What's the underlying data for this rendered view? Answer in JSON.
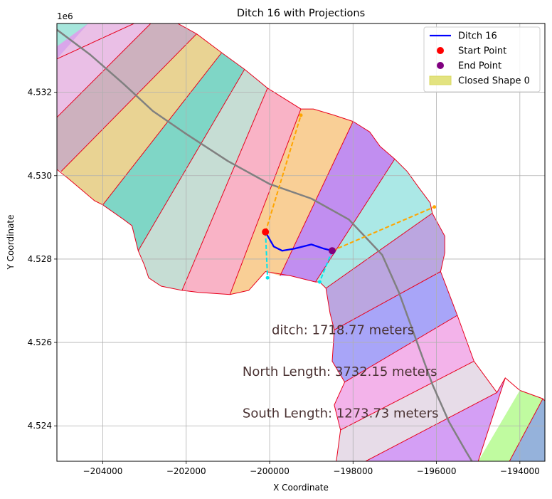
{
  "chart_data": {
    "type": "line",
    "title": "Ditch 16 with Projections",
    "xlabel": "X Coordinate",
    "ylabel": "Y Coordinate",
    "y_offset_label": "1e6",
    "xlim": [
      -205100,
      -193400
    ],
    "ylim": [
      4523150,
      4533650
    ],
    "x_ticks": [
      -204000,
      -202000,
      -200000,
      -198000,
      -196000,
      -194000
    ],
    "x_tick_labels": [
      "−204000",
      "−202000",
      "−200000",
      "−198000",
      "−196000",
      "−194000"
    ],
    "y_ticks": [
      4524000,
      4526000,
      4528000,
      4530000,
      4532000
    ],
    "y_tick_labels": [
      "4.524",
      "4.526",
      "4.528",
      "4.530",
      "4.532"
    ],
    "grid": true,
    "legend_position": "top-right",
    "legend": [
      {
        "label": "Ditch 16",
        "kind": "line",
        "color": "#0000ff"
      },
      {
        "label": "Start Point",
        "kind": "marker",
        "color": "#ff0000"
      },
      {
        "label": "End Point",
        "kind": "marker",
        "color": "#800080"
      },
      {
        "label": "Closed Shape 0",
        "kind": "patch",
        "color": "#e3e380"
      }
    ],
    "strips": [
      {
        "color": "#d9a6ea",
        "points": [
          [
            -205100,
            4532825
          ],
          [
            -205100,
            4533650
          ],
          [
            -203250,
            4533650
          ],
          [
            -205100,
            4532800
          ]
        ]
      },
      {
        "color": "#a6e6dc",
        "points": [
          [
            -205100,
            4533100
          ],
          [
            -205100,
            4533650
          ],
          [
            -204350,
            4533650
          ]
        ]
      },
      {
        "color": "#eabfe6",
        "points": [
          [
            -205100,
            4531400
          ],
          [
            -205100,
            4532800
          ],
          [
            -204350,
            4533650
          ],
          [
            -202850,
            4533650
          ],
          [
            -205100,
            4531400
          ]
        ]
      },
      {
        "color": "#cdb1be",
        "points": [
          [
            -205100,
            4530150
          ],
          [
            -205100,
            4531400
          ],
          [
            -202850,
            4533650
          ],
          [
            -202200,
            4533650
          ],
          [
            -201750,
            4533400
          ],
          [
            -205000,
            4530100
          ]
        ]
      },
      {
        "color": "#e9d393",
        "points": [
          [
            -205000,
            4530100
          ],
          [
            -201750,
            4533400
          ],
          [
            -201150,
            4532950
          ],
          [
            -204000,
            4529300
          ],
          [
            -204200,
            4529400
          ],
          [
            -204850,
            4529950
          ]
        ]
      },
      {
        "color": "#7fd6c6",
        "points": [
          [
            -204000,
            4529300
          ],
          [
            -201150,
            4532950
          ],
          [
            -200600,
            4532550
          ],
          [
            -203150,
            4528200
          ],
          [
            -203300,
            4528800
          ],
          [
            -203500,
            4528950
          ]
        ]
      },
      {
        "color": "#c6ddd4",
        "points": [
          [
            -203150,
            4528200
          ],
          [
            -200600,
            4532550
          ],
          [
            -200050,
            4532100
          ],
          [
            -202100,
            4527250
          ],
          [
            -202600,
            4527350
          ],
          [
            -202900,
            4527550
          ],
          [
            -203000,
            4527850
          ]
        ]
      },
      {
        "color": "#f9b3c6",
        "points": [
          [
            -202100,
            4527250
          ],
          [
            -200050,
            4532100
          ],
          [
            -199250,
            4531600
          ],
          [
            -200950,
            4527150
          ],
          [
            -201700,
            4527200
          ]
        ]
      },
      {
        "color": "#f9cf96",
        "points": [
          [
            -200950,
            4527150
          ],
          [
            -199250,
            4531600
          ],
          [
            -198950,
            4531600
          ],
          [
            -198450,
            4531450
          ],
          [
            -198000,
            4531300
          ],
          [
            -199750,
            4527600
          ],
          [
            -200100,
            4527700
          ],
          [
            -200500,
            4527250
          ]
        ]
      },
      {
        "color": "#c18ef0",
        "points": [
          [
            -199750,
            4527600
          ],
          [
            -198000,
            4531300
          ],
          [
            -197600,
            4531050
          ],
          [
            -197350,
            4530700
          ],
          [
            -197000,
            4530400
          ],
          [
            -198900,
            4527450
          ],
          [
            -199500,
            4527600
          ]
        ]
      },
      {
        "color": "#abe8e6",
        "points": [
          [
            -198900,
            4527450
          ],
          [
            -197000,
            4530400
          ],
          [
            -196700,
            4530100
          ],
          [
            -196450,
            4529750
          ],
          [
            -196150,
            4529350
          ],
          [
            -196100,
            4529100
          ],
          [
            -198650,
            4527300
          ],
          [
            -198800,
            4527450
          ]
        ]
      },
      {
        "color": "#bba6e0",
        "points": [
          [
            -198650,
            4527300
          ],
          [
            -196100,
            4529100
          ],
          [
            -195800,
            4528550
          ],
          [
            -195800,
            4528150
          ],
          [
            -195900,
            4527700
          ],
          [
            -198450,
            4526300
          ],
          [
            -198550,
            4526700
          ],
          [
            -198650,
            4527300
          ]
        ]
      },
      {
        "color": "#a8a5f8",
        "points": [
          [
            -198450,
            4526300
          ],
          [
            -195900,
            4527700
          ],
          [
            -195500,
            4526650
          ],
          [
            -198200,
            4525050
          ],
          [
            -198500,
            4525550
          ]
        ]
      },
      {
        "color": "#f3b3ea",
        "points": [
          [
            -198200,
            4525050
          ],
          [
            -195500,
            4526650
          ],
          [
            -195100,
            4525550
          ],
          [
            -198300,
            4523900
          ],
          [
            -198450,
            4524500
          ]
        ]
      },
      {
        "color": "#e7dce8",
        "points": [
          [
            -198300,
            4523900
          ],
          [
            -195100,
            4525550
          ],
          [
            -194550,
            4524800
          ],
          [
            -197700,
            4523150
          ],
          [
            -198400,
            4523150
          ]
        ]
      },
      {
        "color": "#d49ff5",
        "points": [
          [
            -197700,
            4523150
          ],
          [
            -194550,
            4524800
          ],
          [
            -194350,
            4525150
          ],
          [
            -195000,
            4523150
          ]
        ]
      },
      {
        "color": "#c0fba0",
        "points": [
          [
            -195000,
            4523150
          ],
          [
            -194000,
            4524850
          ],
          [
            -193450,
            4524650
          ],
          [
            -194250,
            4523150
          ]
        ]
      },
      {
        "color": "#95b2db",
        "points": [
          [
            -194250,
            4523150
          ],
          [
            -193450,
            4524650
          ],
          [
            -193400,
            4524600
          ],
          [
            -193400,
            4523150
          ]
        ]
      }
    ],
    "boundaries": [
      [
        [
          -205100,
          4532800
        ],
        [
          -203250,
          4533650
        ]
      ],
      [
        [
          -205100,
          4531400
        ],
        [
          -202850,
          4533650
        ]
      ],
      [
        [
          -205000,
          4530100
        ],
        [
          -201750,
          4533400
        ]
      ],
      [
        [
          -204000,
          4529300
        ],
        [
          -201150,
          4532950
        ]
      ],
      [
        [
          -203150,
          4528200
        ],
        [
          -200600,
          4532550
        ]
      ],
      [
        [
          -202100,
          4527250
        ],
        [
          -200050,
          4532100
        ]
      ],
      [
        [
          -200950,
          4527150
        ],
        [
          -199250,
          4531600
        ]
      ],
      [
        [
          -199750,
          4527600
        ],
        [
          -198000,
          4531300
        ]
      ],
      [
        [
          -198900,
          4527450
        ],
        [
          -197000,
          4530400
        ]
      ],
      [
        [
          -198650,
          4527300
        ],
        [
          -196100,
          4529100
        ]
      ],
      [
        [
          -198450,
          4526300
        ],
        [
          -195900,
          4527700
        ]
      ],
      [
        [
          -198200,
          4525050
        ],
        [
          -195500,
          4526650
        ]
      ],
      [
        [
          -198300,
          4523900
        ],
        [
          -195100,
          4525550
        ]
      ],
      [
        [
          -197700,
          4523150
        ],
        [
          -194550,
          4524800
        ]
      ],
      [
        [
          -195000,
          4523150
        ],
        [
          -194350,
          4525150
        ]
      ],
      [
        [
          -194250,
          4523150
        ],
        [
          -193450,
          4524650
        ]
      ]
    ],
    "outline_north": [
      [
        -205100,
        4530150
      ],
      [
        -204850,
        4529950
      ],
      [
        -204200,
        4529400
      ],
      [
        -204000,
        4529300
      ],
      [
        -203500,
        4528950
      ],
      [
        -203300,
        4528800
      ],
      [
        -203150,
        4528200
      ],
      [
        -203000,
        4527850
      ],
      [
        -202900,
        4527550
      ],
      [
        -202600,
        4527350
      ],
      [
        -202100,
        4527250
      ],
      [
        -201700,
        4527200
      ],
      [
        -200950,
        4527150
      ],
      [
        -200500,
        4527250
      ],
      [
        -200100,
        4527700
      ],
      [
        -199500,
        4527600
      ],
      [
        -198900,
        4527450
      ],
      [
        -198800,
        4527450
      ],
      [
        -198650,
        4527300
      ],
      [
        -198550,
        4526700
      ],
      [
        -198450,
        4526300
      ],
      [
        -198500,
        4525550
      ],
      [
        -198200,
        4525050
      ],
      [
        -198450,
        4524500
      ],
      [
        -198300,
        4523900
      ],
      [
        -198400,
        4523150
      ]
    ],
    "outline_top": [
      [
        -202200,
        4533650
      ],
      [
        -201750,
        4533400
      ],
      [
        -201150,
        4532950
      ],
      [
        -200600,
        4532550
      ],
      [
        -200050,
        4532100
      ],
      [
        -199250,
        4531600
      ],
      [
        -198950,
        4531600
      ],
      [
        -198450,
        4531450
      ],
      [
        -198000,
        4531300
      ],
      [
        -197600,
        4531050
      ],
      [
        -197350,
        4530700
      ],
      [
        -197000,
        4530400
      ],
      [
        -196700,
        4530100
      ],
      [
        -196450,
        4529750
      ],
      [
        -196150,
        4529350
      ],
      [
        -196100,
        4529100
      ],
      [
        -195800,
        4528550
      ],
      [
        -195800,
        4528150
      ],
      [
        -195900,
        4527700
      ],
      [
        -195500,
        4526650
      ],
      [
        -195100,
        4525550
      ],
      [
        -194550,
        4524800
      ],
      [
        -194350,
        4525150
      ],
      [
        -194000,
        4524850
      ],
      [
        -193450,
        4524650
      ],
      [
        -193400,
        4524600
      ]
    ],
    "road": [
      [
        -205100,
        4533500
      ],
      [
        -204300,
        4532900
      ],
      [
        -203500,
        4532200
      ],
      [
        -202800,
        4531550
      ],
      [
        -202000,
        4531000
      ],
      [
        -201000,
        4530350
      ],
      [
        -200000,
        4529800
      ],
      [
        -199000,
        4529450
      ],
      [
        -198100,
        4528950
      ],
      [
        -197300,
        4528100
      ],
      [
        -196900,
        4527200
      ],
      [
        -196500,
        4526100
      ],
      [
        -196100,
        4525000
      ],
      [
        -195700,
        4524100
      ],
      [
        -195300,
        4523400
      ],
      [
        -195150,
        4523150
      ]
    ],
    "ditch": {
      "name": "Ditch 16",
      "x": [
        -200100,
        -199900,
        -199700,
        -199400,
        -199000,
        -198700,
        -198500
      ],
      "y": [
        4528650,
        4528300,
        4528200,
        4528250,
        4528350,
        4528250,
        4528200
      ]
    },
    "start_point": {
      "x": -200100,
      "y": 4528650
    },
    "end_point": {
      "x": -198500,
      "y": 4528200
    },
    "projection_north": [
      [
        [
          -200100,
          4528650
        ],
        [
          -199250,
          4531450
        ]
      ],
      [
        [
          -198500,
          4528200
        ],
        [
          -196050,
          4529250
        ]
      ]
    ],
    "projection_south": [
      [
        [
          -200100,
          4528650
        ],
        [
          -200050,
          4527550
        ]
      ],
      [
        [
          -198500,
          4528200
        ],
        [
          -198800,
          4527450
        ]
      ]
    ],
    "annotations": [
      {
        "text": "ditch: 1718.77 meters",
        "x": -199950,
        "y": 4526200
      },
      {
        "text": "North Length: 3732.15 meters",
        "x": -200650,
        "y": 4525200
      },
      {
        "text": "South Length: 1273.73 meters",
        "x": -200650,
        "y": 4524200
      }
    ]
  }
}
